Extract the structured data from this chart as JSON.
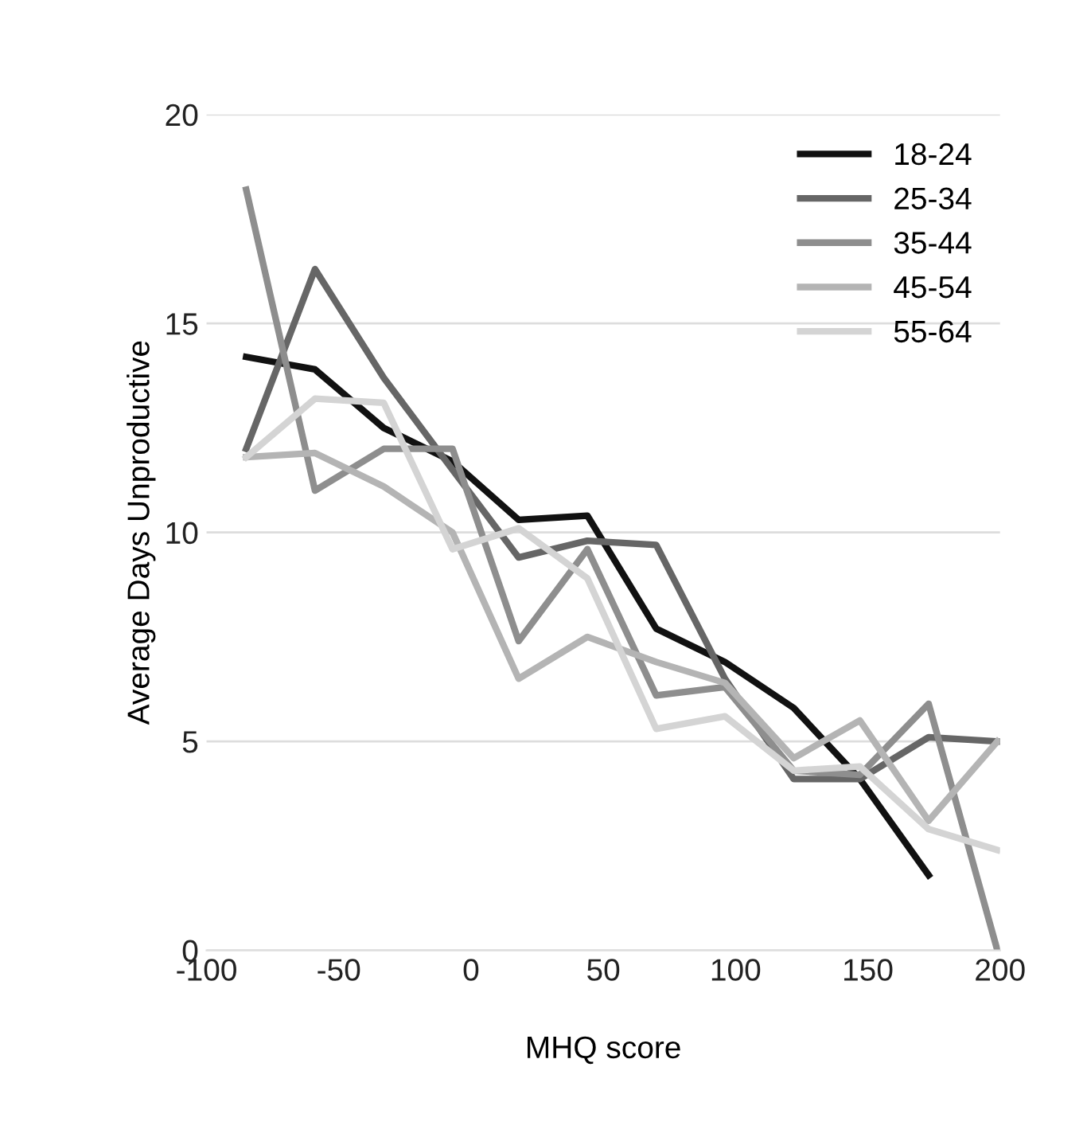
{
  "chart_data": {
    "type": "line",
    "xlabel": "MHQ score",
    "ylabel": "Average Days Unproductive",
    "x": [
      -85,
      -59,
      -33,
      -7,
      18,
      44,
      70,
      96,
      122,
      147,
      173,
      199
    ],
    "series": [
      {
        "name": "18-24",
        "color": "#111111",
        "values": [
          14.2,
          13.9,
          12.5,
          11.7,
          10.3,
          10.4,
          7.7,
          6.9,
          5.8,
          4.1,
          1.8,
          null
        ]
      },
      {
        "name": "25-34",
        "color": "#666666",
        "values": [
          12.0,
          16.3,
          13.7,
          11.5,
          9.4,
          9.8,
          9.7,
          6.5,
          4.1,
          4.1,
          5.1,
          5.0
        ]
      },
      {
        "name": "35-44",
        "color": "#8e8e8e",
        "values": [
          18.2,
          11.0,
          12.0,
          12.0,
          7.4,
          9.6,
          6.1,
          6.3,
          4.3,
          4.2,
          5.9,
          0
        ]
      },
      {
        "name": "45-54",
        "color": "#b4b4b4",
        "values": [
          11.8,
          11.9,
          11.1,
          10.0,
          6.5,
          7.5,
          6.9,
          6.4,
          4.6,
          5.5,
          3.1,
          5.0
        ]
      },
      {
        "name": "55-64",
        "color": "#d4d4d4",
        "values": [
          11.8,
          13.2,
          13.1,
          9.6,
          10.1,
          8.9,
          5.3,
          5.6,
          4.3,
          4.4,
          2.9,
          2.4
        ]
      }
    ],
    "xlim": [
      -100,
      200
    ],
    "xticks": [
      -100,
      -50,
      0,
      50,
      100,
      150,
      200
    ],
    "ylim": [
      0,
      20
    ],
    "yticks": [
      0,
      5,
      10,
      15,
      20
    ],
    "grid": "y",
    "legend": "top right",
    "marker": "none",
    "line_style": "solid"
  }
}
